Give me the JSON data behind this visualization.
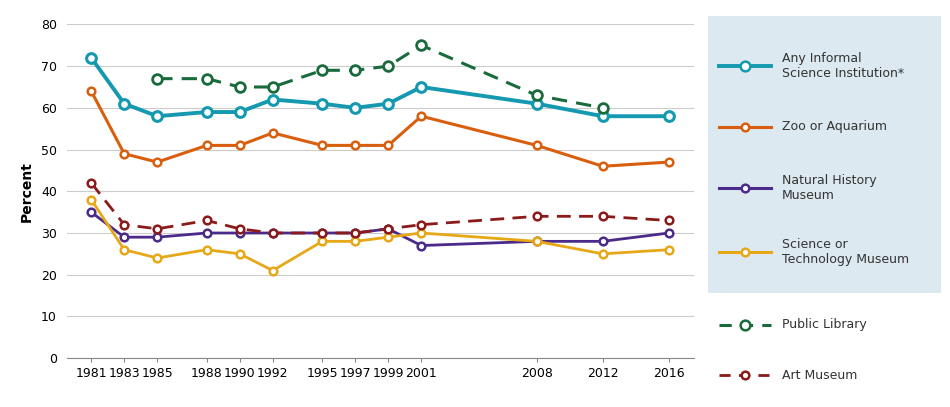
{
  "years": [
    1981,
    1983,
    1985,
    1988,
    1990,
    1992,
    1995,
    1997,
    1999,
    2001,
    2008,
    2012,
    2016
  ],
  "any_informal": [
    72,
    61,
    58,
    59,
    59,
    62,
    61,
    60,
    61,
    65,
    61,
    58,
    58
  ],
  "zoo_aquarium": [
    64,
    49,
    47,
    51,
    51,
    54,
    51,
    51,
    51,
    58,
    51,
    46,
    47
  ],
  "natural_history": [
    35,
    29,
    29,
    30,
    30,
    30,
    30,
    30,
    31,
    27,
    28,
    28,
    30
  ],
  "sci_tech": [
    38,
    26,
    24,
    26,
    25,
    21,
    28,
    28,
    29,
    30,
    28,
    25,
    26
  ],
  "public_library": [
    null,
    null,
    67,
    67,
    65,
    65,
    69,
    69,
    70,
    75,
    63,
    60,
    null
  ],
  "art_museum": [
    42,
    32,
    31,
    33,
    31,
    30,
    30,
    30,
    31,
    32,
    34,
    34,
    33
  ],
  "colors": {
    "any_informal": "#1499b0",
    "zoo_aquarium": "#d95f0e",
    "natural_history": "#4a2a8a",
    "sci_tech": "#e6a817",
    "public_library": "#1a6b3c",
    "art_museum": "#8b1a1a"
  },
  "ylabel": "Percent",
  "ylim": [
    0,
    80
  ],
  "yticks": [
    0,
    10,
    20,
    30,
    40,
    50,
    60,
    70,
    80
  ],
  "legend_bg": "#dce9f0",
  "legend_labels": [
    "Any Informal\nScience Institution*",
    "Zoo or Aquarium",
    "Natural History\nMuseum",
    "Science or\nTechnology Museum",
    "Public Library",
    "Art Museum"
  ]
}
